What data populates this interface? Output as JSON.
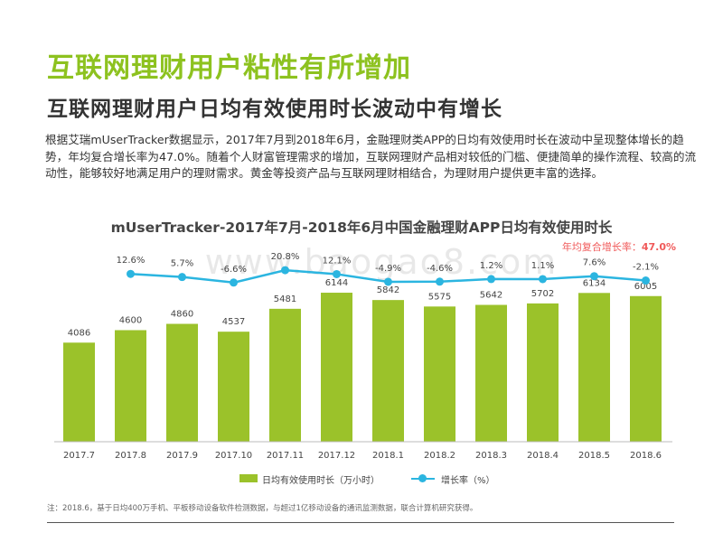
{
  "header": {
    "title": "互联网理财用户粘性有所增加",
    "subtitle": "互联网理财用户日均有效使用时长波动中有增长"
  },
  "description": "根据艾瑞mUserTracker数据显示，2017年7月到2018年6月，金融理财类APP的日均有效使用时长在波动中呈现整体增长的趋势，年均复合增长率为47.0%。随着个人财富管理需求的增加，互联网理财产品相对较低的门槛、便捷简单的操作流程、较高的流动性，能够较好地满足用户的理财需求。黄金等投资产品与互联网理财相结合，为理财用户提供更丰富的选择。",
  "watermark": "www.baogao8.com",
  "cagr_label": "年均复合增长率：",
  "cagr_value": "47.0%",
  "note": "注：2018.6，基于日均400万手机、平板移动设备软件检测数据，与超过1亿移动设备的通讯监测数据，联合计算机研究获得。",
  "colors": {
    "title_green": "#8dc21f",
    "bar": "#9bc22a",
    "line": "#2bb5e0",
    "cagr": "#f05a5a"
  },
  "chart_data": {
    "type": "bar+line",
    "title": "mUserTracker-2017年7月-2018年6月中国金融理财APP日均有效使用时长",
    "categories": [
      "2017.7",
      "2017.8",
      "2017.9",
      "2017.10",
      "2017.11",
      "2017.12",
      "2018.1",
      "2018.2",
      "2018.3",
      "2018.4",
      "2018.5",
      "2018.6"
    ],
    "series": [
      {
        "name": "日均有效使用时长（万小时）",
        "type": "bar",
        "values": [
          4086,
          4600,
          4860,
          4537,
          5481,
          6144,
          5842,
          5575,
          5642,
          5702,
          6134,
          6005
        ],
        "labels": [
          "4086",
          "4600",
          "4860",
          "4537",
          "5481",
          "6144",
          "5842",
          "5575",
          "5642",
          "5702",
          "6134",
          "6005"
        ]
      },
      {
        "name": "增长率（%）",
        "type": "line",
        "values": [
          null,
          12.6,
          5.7,
          -6.6,
          20.8,
          12.1,
          -4.9,
          -4.6,
          1.2,
          1.1,
          7.6,
          -2.1
        ],
        "labels": [
          "",
          "12.6%",
          "5.7%",
          "-6.6%",
          "20.8%",
          "12.1%",
          "-4.9%",
          "-4.6%",
          "1.2%",
          "1.1%",
          "7.6%",
          "-2.1%"
        ]
      }
    ],
    "legend_position": "bottom",
    "grid": false
  }
}
